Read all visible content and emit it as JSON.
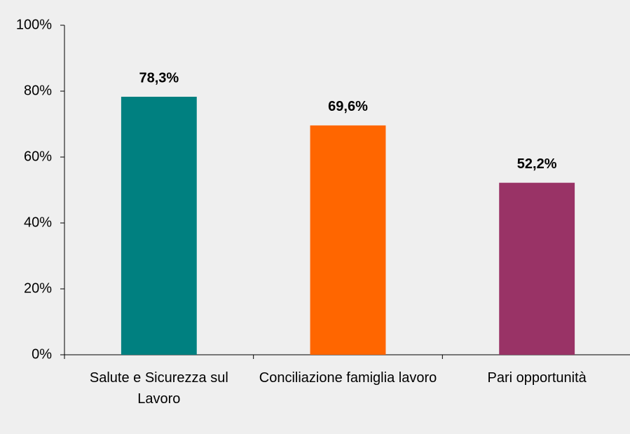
{
  "chart_data": {
    "type": "bar",
    "categories": [
      "Salute e Sicurezza sul Lavoro",
      "Conciliazione famiglia lavoro",
      "Pari opportunità"
    ],
    "values": [
      78.3,
      69.6,
      52.2
    ],
    "value_labels": [
      "78,3%",
      "69,6%",
      "52,2%"
    ],
    "colors": [
      "#008080",
      "#ff6600",
      "#993366"
    ],
    "ylim": [
      0,
      100
    ],
    "yticks": [
      {
        "value": 0,
        "label": "0%"
      },
      {
        "value": 20,
        "label": "20%"
      },
      {
        "value": 40,
        "label": "40%"
      },
      {
        "value": 60,
        "label": "60%"
      },
      {
        "value": 80,
        "label": "80%"
      },
      {
        "value": 100,
        "label": "100%"
      }
    ],
    "grid": false
  }
}
